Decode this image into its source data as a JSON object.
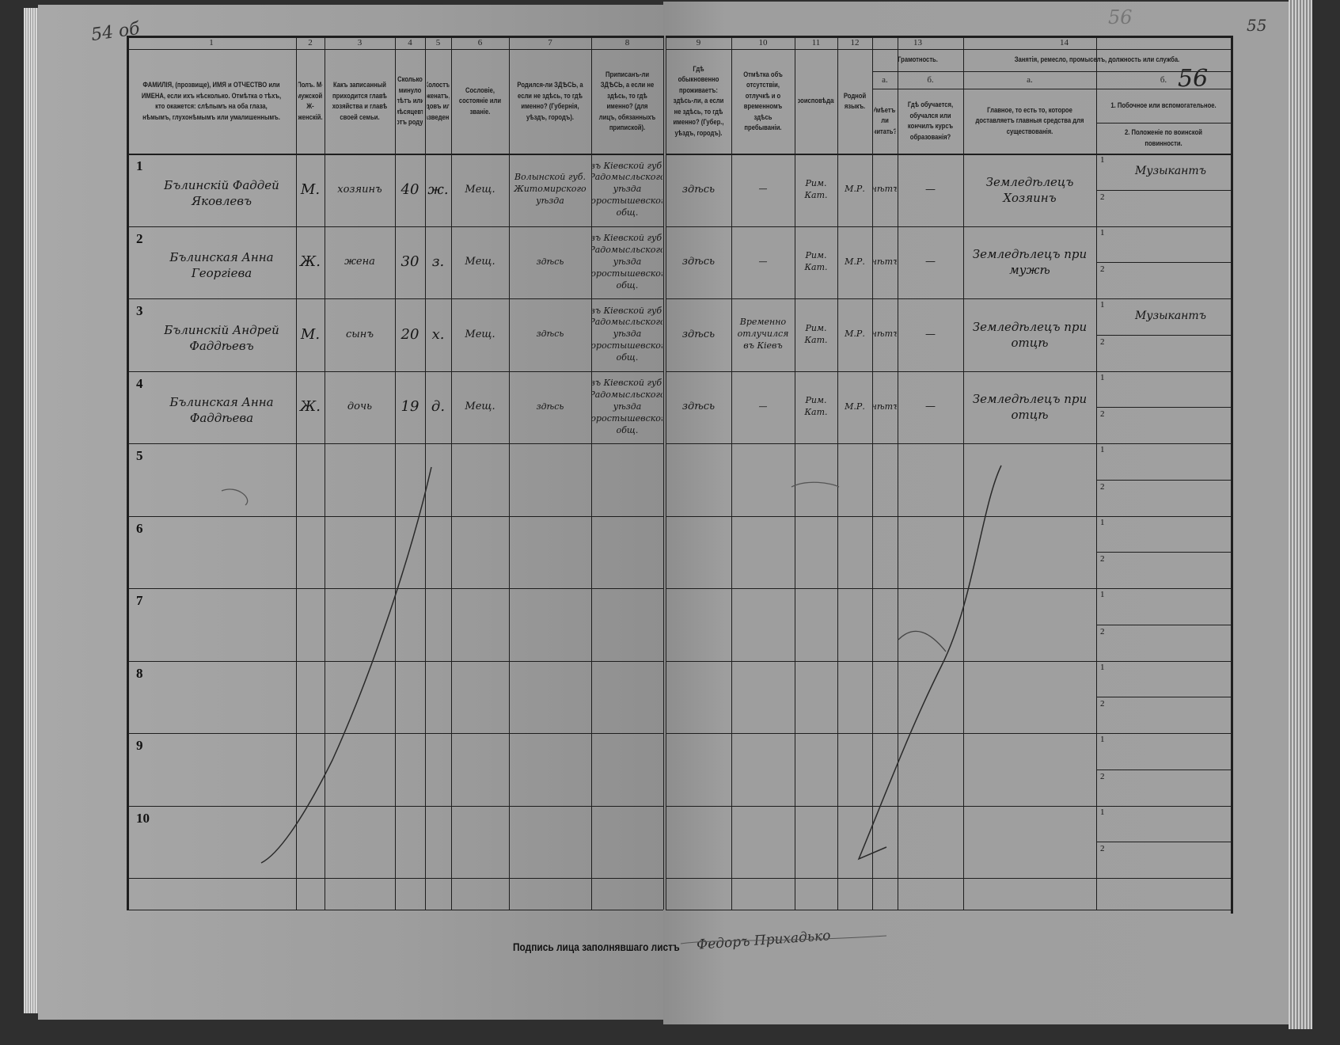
{
  "margin_notes": {
    "left_folio": "54 об",
    "right_folio": "55",
    "sheet_number": "56",
    "faint_number": "56"
  },
  "columns": [
    {
      "num": "1",
      "label": "ФАМИЛІЯ, (прозвище), ИМЯ и ОТЧЕСТВО или ИМЕНА, если ихъ нѣсколько. Отмѣтка о тѣхъ, кто окажется: слѣпымъ на оба глаза, нѣмымъ, глухонѣмымъ или умалишеннымъ."
    },
    {
      "num": "2",
      "label": "Полъ. М-мужской. Ж-женскій."
    },
    {
      "num": "3",
      "label": "Какъ записанный приходится главѣ хозяйства и главѣ своей семьи."
    },
    {
      "num": "4",
      "label": "Сколько минуло лѣтъ или мѣсяцевъ отъ роду."
    },
    {
      "num": "5",
      "label": "Холостъ, женатъ, вдовъ или разведенъ."
    },
    {
      "num": "6",
      "label": "Сословіе, состояніе или званіе."
    },
    {
      "num": "7",
      "label": "Родился-ли ЗДѢСЬ, а если не здѣсь, то гдѣ именно? (Губернія, уѣздъ, городъ)."
    },
    {
      "num": "8",
      "label": "Приписанъ-ли ЗДѢСЬ, а если не здѣсь, то гдѣ именно? (для лицъ, обязанныхъ припиской)."
    },
    {
      "num": "9",
      "label": "Гдѣ обыкновенно проживаетъ: здѣсь-ли, а если не здѣсь, то гдѣ именно? (Губер., уѣздъ, городъ)."
    },
    {
      "num": "10",
      "label": "Отмѣтка объ отсутствіи, отлучкѣ и о временномъ здѣсь пребываніи."
    },
    {
      "num": "11",
      "label": "Вѣроисповѣданіе."
    },
    {
      "num": "12",
      "label": "Родной языкъ."
    },
    {
      "num": "13а",
      "label": "Умѣетъ-ли читать?"
    },
    {
      "num": "13б",
      "label": "Гдѣ обучается, обучался или кончилъ курсъ образованія?"
    },
    {
      "num": "14а",
      "label": "Главное, то есть то, которое доставляетъ главныя средства для существованія."
    },
    {
      "num": "14б",
      "label": "1. Побочное или вспомогательное. 2. Положеніе по воинской повинности."
    }
  ],
  "group_headers": {
    "literacy": "Грамотность.",
    "literacy_num": "13",
    "occupation": "Занятія, ремесло, промыселъ, должность или служба.",
    "occupation_num": "14",
    "sub_a": "а.",
    "sub_b": "б.",
    "occ_b_1": "1. Побочное или вспомогательное.",
    "occ_b_2": "2. Положеніе по воинской повинности."
  },
  "row_numbers": [
    "1",
    "2",
    "3",
    "4",
    "5",
    "6",
    "7",
    "8",
    "9",
    "10"
  ],
  "sub_labels": [
    "1",
    "2"
  ],
  "rows": [
    {
      "name": "Бълинскій Фаддей Яковлевъ",
      "sex": "М.",
      "relation": "хозяинъ",
      "age": "40",
      "marital": "ж.",
      "estate": "Мещ.",
      "born": "Волынской губ. Житомирского уѣзда",
      "registered": "въ Кіевской губ. Радомысльского уѣзда Коростышевского общ.",
      "residence": "здѣсь",
      "absence": "—",
      "religion": "Рим. Кат.",
      "language": "М.Р.",
      "reads": "нѣтъ",
      "education": "—",
      "occupation": "Земледѣлецъ Хозяинъ",
      "secondary": "Музыкантъ",
      "military": ""
    },
    {
      "name": "Бълинская Анна Георгіева",
      "sex": "Ж.",
      "relation": "жена",
      "age": "30",
      "marital": "з.",
      "estate": "Мещ.",
      "born": "здѣсь",
      "registered": "въ Кіевской губ. Радомысльского уѣзда Коростышевского общ.",
      "residence": "здѣсь",
      "absence": "—",
      "religion": "Рим. Кат.",
      "language": "М.Р.",
      "reads": "нѣтъ",
      "education": "—",
      "occupation": "Земледѣлецъ при мужѣ",
      "secondary": "",
      "military": ""
    },
    {
      "name": "Бълинскій Андрей Фаддѣевъ",
      "sex": "М.",
      "relation": "сынъ",
      "age": "20",
      "marital": "х.",
      "estate": "Мещ.",
      "born": "здѣсь",
      "registered": "въ Кіевской губ. Радомысльского уѣзда Коростышевского общ.",
      "residence": "здѣсь",
      "absence": "Временно отлучился въ Кіевъ",
      "religion": "Рим. Кат.",
      "language": "М.Р.",
      "reads": "нѣтъ",
      "education": "—",
      "occupation": "Земледѣлецъ при отцѣ",
      "secondary": "Музыкантъ",
      "military": ""
    },
    {
      "name": "Бълинская Анна Фаддѣева",
      "sex": "Ж.",
      "relation": "дочь",
      "age": "19",
      "marital": "д.",
      "estate": "Мещ.",
      "born": "здѣсь",
      "registered": "въ Кіевской губ. Радомысльского уѣзда Коростышевского общ.",
      "residence": "здѣсь",
      "absence": "—",
      "religion": "Рим. Кат.",
      "language": "М.Р.",
      "reads": "нѣтъ",
      "education": "—",
      "occupation": "Земледѣлецъ при отцѣ",
      "secondary": "",
      "military": ""
    }
  ],
  "signature": {
    "label": "Подпись лица заполнявшаго листъ",
    "value": "Федоръ Прихадько"
  },
  "colors": {
    "paper": "#9b9b9b",
    "ink": "#151515",
    "background": "#2f2f2f"
  }
}
